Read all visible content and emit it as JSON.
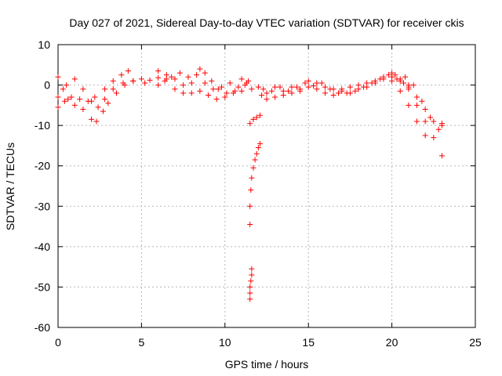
{
  "chart_data": {
    "type": "scatter",
    "title": "Day 027 of 2021, Sidereal Day-to-day VTEC variation (SDTVAR) for receiver ckis",
    "xlabel": "GPS time / hours",
    "ylabel": "SDTVAR / TECUs",
    "xlim": [
      0,
      25
    ],
    "ylim": [
      -60,
      10
    ],
    "xticks": [
      0,
      5,
      10,
      15,
      20,
      25
    ],
    "yticks": [
      -60,
      -50,
      -40,
      -30,
      -20,
      -10,
      0,
      10
    ],
    "grid": true,
    "marker": "plus",
    "series": [
      {
        "name": "SDTVAR",
        "color": "#ff0000",
        "tracks": [
          [
            [
              0.0,
              2.0
            ],
            [
              0.3,
              -1.0
            ],
            [
              0.6,
              -3.5
            ],
            [
              1.0,
              -5.0
            ],
            [
              1.5,
              -6.0
            ],
            [
              2.0,
              -8.5
            ],
            [
              2.3,
              -9.0
            ],
            [
              2.7,
              -6.5
            ],
            [
              3.0,
              -4.5
            ],
            [
              3.5,
              -2.0
            ],
            [
              4.0,
              0.0
            ],
            [
              4.5,
              1.0
            ],
            [
              5.0,
              1.5
            ],
            [
              5.5,
              1.2
            ],
            [
              6.0,
              1.8
            ],
            [
              6.5,
              1.5
            ]
          ],
          [
            [
              0.0,
              -5.5
            ],
            [
              0.4,
              -4.0
            ],
            [
              0.8,
              -3.0
            ],
            [
              1.3,
              -3.5
            ],
            [
              1.8,
              -4.0
            ],
            [
              2.2,
              -3.0
            ],
            [
              2.8,
              -1.0
            ],
            [
              3.3,
              1.0
            ],
            [
              3.8,
              2.5
            ],
            [
              4.2,
              3.5
            ]
          ],
          [
            [
              0.0,
              -3.0
            ],
            [
              0.5,
              0.0
            ],
            [
              1.0,
              1.5
            ],
            [
              1.5,
              -1.0
            ],
            [
              2.0,
              -4.0
            ],
            [
              2.4,
              -5.5
            ],
            [
              2.8,
              -3.5
            ],
            [
              3.3,
              -1.0
            ],
            [
              3.9,
              0.5
            ],
            [
              4.5,
              1.0
            ],
            [
              5.2,
              0.5
            ],
            [
              6.0,
              0.0
            ],
            [
              6.4,
              1.0
            ]
          ],
          [
            [
              6.0,
              3.5
            ],
            [
              6.5,
              2.5
            ],
            [
              7.0,
              1.5
            ],
            [
              7.5,
              0.0
            ],
            [
              8.0,
              -2.0
            ],
            [
              8.5,
              -1.5
            ],
            [
              9.0,
              -2.5
            ],
            [
              9.5,
              -3.5
            ],
            [
              10.0,
              -3.0
            ],
            [
              10.5,
              -2.0
            ],
            [
              11.0,
              -1.5
            ]
          ],
          [
            [
              7.0,
              -1.0
            ],
            [
              7.5,
              -2.0
            ],
            [
              8.0,
              0.5
            ],
            [
              8.5,
              4.0
            ],
            [
              8.8,
              3.0
            ],
            [
              9.2,
              1.0
            ],
            [
              9.6,
              -1.0
            ],
            [
              10.1,
              -2.0
            ],
            [
              10.6,
              -1.5
            ],
            [
              11.2,
              0.0
            ]
          ],
          [
            [
              6.8,
              2.0
            ],
            [
              7.3,
              3.0
            ],
            [
              7.8,
              2.0
            ],
            [
              8.3,
              2.5
            ],
            [
              8.8,
              0.5
            ],
            [
              9.3,
              -1.0
            ],
            [
              9.8,
              -0.5
            ],
            [
              10.3,
              0.5
            ],
            [
              10.8,
              -0.5
            ],
            [
              11.4,
              1.0
            ]
          ],
          [
            [
              11.0,
              1.5
            ],
            [
              11.3,
              0.5
            ],
            [
              11.6,
              -1.0
            ]
          ],
          [
            [
              11.5,
              -9.5
            ],
            [
              11.7,
              -8.5
            ],
            [
              11.9,
              -8.0
            ],
            [
              12.1,
              -7.5
            ]
          ],
          [
            [
              11.5,
              -34.5
            ],
            [
              11.5,
              -30.0
            ],
            [
              11.55,
              -26.0
            ],
            [
              11.6,
              -23.0
            ],
            [
              11.7,
              -20.5
            ],
            [
              11.8,
              -18.5
            ],
            [
              11.9,
              -17.0
            ],
            [
              12.0,
              -15.5
            ],
            [
              12.1,
              -14.5
            ]
          ],
          [
            [
              11.5,
              -53.0
            ],
            [
              11.5,
              -51.5
            ],
            [
              11.5,
              -50.0
            ],
            [
              11.55,
              -48.5
            ],
            [
              11.6,
              -47.0
            ],
            [
              11.6,
              -45.5
            ]
          ],
          [
            [
              12.0,
              -0.5
            ],
            [
              12.2,
              -2.5
            ],
            [
              12.5,
              -3.5
            ],
            [
              13.0,
              -3.0
            ],
            [
              13.5,
              -2.5
            ],
            [
              14.0,
              -2.0
            ],
            [
              14.5,
              -1.0
            ],
            [
              15.0,
              -0.5
            ],
            [
              15.5,
              -1.0
            ],
            [
              16.0,
              -2.0
            ],
            [
              16.5,
              -2.5
            ],
            [
              17.0,
              -1.5
            ],
            [
              17.5,
              -0.5
            ],
            [
              18.0,
              -1.0
            ],
            [
              18.5,
              -0.5
            ],
            [
              19.0,
              0.5
            ],
            [
              19.5,
              1.5
            ],
            [
              20.0,
              2.0
            ],
            [
              20.5,
              1.0
            ],
            [
              21.0,
              0.0
            ]
          ],
          [
            [
              12.3,
              -1.0
            ],
            [
              12.8,
              -1.5
            ],
            [
              13.3,
              -0.5
            ],
            [
              13.8,
              -1.5
            ],
            [
              14.3,
              -0.5
            ],
            [
              14.8,
              0.5
            ],
            [
              15.3,
              -0.2
            ],
            [
              15.8,
              0.5
            ],
            [
              16.3,
              -1.0
            ],
            [
              16.8,
              -2.0
            ],
            [
              17.3,
              -2.0
            ],
            [
              17.8,
              -1.5
            ],
            [
              18.3,
              -0.5
            ],
            [
              18.8,
              0.5
            ],
            [
              19.3,
              1.5
            ],
            [
              19.8,
              2.5
            ],
            [
              20.3,
              1.5
            ],
            [
              20.7,
              0.5
            ]
          ],
          [
            [
              12.5,
              -2.0
            ],
            [
              13.0,
              -0.5
            ],
            [
              13.5,
              -1.5
            ],
            [
              14.0,
              -0.5
            ],
            [
              14.5,
              -1.5
            ],
            [
              15.0,
              1.0
            ],
            [
              15.5,
              0.5
            ],
            [
              16.0,
              -0.5
            ],
            [
              16.5,
              -1.0
            ],
            [
              17.0,
              -1.0
            ],
            [
              17.5,
              -2.0
            ],
            [
              18.0,
              0.0
            ],
            [
              18.5,
              0.5
            ],
            [
              19.0,
              1.0
            ],
            [
              19.5,
              2.0
            ],
            [
              20.0,
              3.0
            ],
            [
              20.2,
              2.5
            ]
          ],
          [
            [
              20.0,
              1.0
            ],
            [
              20.5,
              -1.5
            ],
            [
              21.0,
              -5.0
            ],
            [
              21.5,
              -9.0
            ],
            [
              22.0,
              -12.5
            ]
          ],
          [
            [
              20.5,
              1.5
            ],
            [
              21.0,
              -0.5
            ],
            [
              21.5,
              -3.0
            ],
            [
              22.0,
              -6.0
            ],
            [
              22.5,
              -9.0
            ],
            [
              23.0,
              -9.5
            ]
          ],
          [
            [
              21.0,
              -1.0
            ],
            [
              21.5,
              -5.0
            ],
            [
              22.0,
              -9.0
            ],
            [
              22.5,
              -13.0
            ],
            [
              23.0,
              -17.5
            ]
          ],
          [
            [
              20.8,
              2.0
            ],
            [
              21.3,
              0.0
            ],
            [
              21.8,
              -4.0
            ],
            [
              22.3,
              -8.0
            ],
            [
              22.8,
              -11.0
            ],
            [
              23.0,
              -10.0
            ]
          ]
        ]
      }
    ]
  }
}
